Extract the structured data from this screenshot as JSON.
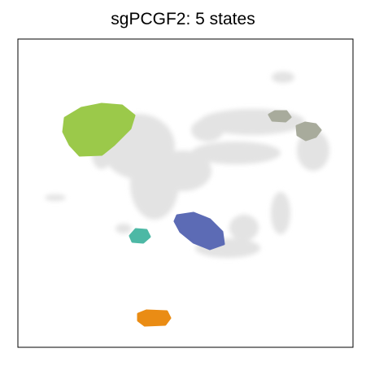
{
  "chart_data": {
    "type": "scatter",
    "title": "sgPCGF2: 5 states",
    "xlabel": "",
    "ylabel": "",
    "grid": false,
    "legend": "none",
    "background_color": "#e3e3e3",
    "series": [
      {
        "color": "#9bc94a"
      },
      {
        "color": "#5c6bb5"
      },
      {
        "color": "#4db8a5"
      },
      {
        "color": "#ea8c14"
      },
      {
        "color": "#a8ab9c"
      }
    ]
  }
}
